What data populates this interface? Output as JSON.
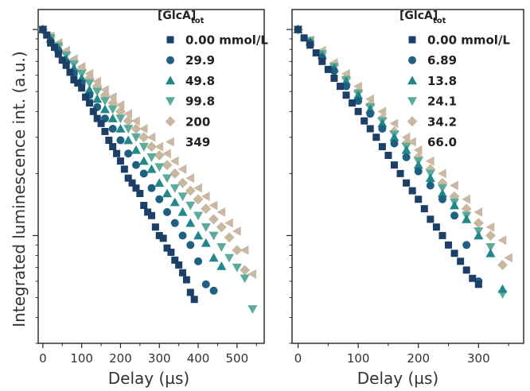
{
  "figure": {
    "ylabel": "Integrated luminescence int. (a.u.)"
  },
  "chart_data": [
    {
      "type": "scatter",
      "xlabel": "Delay (µs)",
      "ylabel": "Integrated luminescence int. (a.u.)",
      "y_scale": "log",
      "xlim": [
        -12,
        570
      ],
      "ylim": [
        0.03,
        1.25
      ],
      "x_ticks": [
        0,
        100,
        200,
        300,
        400,
        500
      ],
      "x_tick_labels": [
        "0",
        "100",
        "200",
        "300",
        "400",
        "500"
      ],
      "legend_title": "[GlcA]",
      "legend_title_sub": "tot",
      "legend_position": "top-right",
      "series": [
        {
          "name": "0.00 mmol/L",
          "marker": "square",
          "color": "#1b3f66",
          "x": [
            0,
            10,
            20,
            30,
            40,
            50,
            60,
            70,
            80,
            90,
            100,
            110,
            120,
            130,
            140,
            150,
            160,
            170,
            180,
            190,
            200,
            210,
            220,
            230,
            240,
            250,
            260,
            270,
            280,
            290,
            300,
            310,
            320,
            330,
            340,
            350,
            360,
            370,
            380,
            390
          ],
          "y": [
            1.0,
            0.94,
            0.86,
            0.82,
            0.76,
            0.71,
            0.67,
            0.62,
            0.57,
            0.55,
            0.52,
            0.47,
            0.44,
            0.4,
            0.37,
            0.35,
            0.32,
            0.29,
            0.27,
            0.25,
            0.23,
            0.21,
            0.19,
            0.18,
            0.17,
            0.16,
            0.14,
            0.13,
            0.125,
            0.11,
            0.1,
            0.097,
            0.087,
            0.083,
            0.076,
            0.072,
            0.066,
            0.061,
            0.053,
            0.049
          ]
        },
        {
          "name": "29.9",
          "marker": "circle",
          "color": "#1f5f82",
          "x": [
            0,
            20,
            40,
            60,
            80,
            100,
            120,
            140,
            160,
            180,
            200,
            220,
            240,
            260,
            280,
            300,
            320,
            340,
            360,
            380,
            400,
            420,
            440
          ],
          "y": [
            1.0,
            0.88,
            0.79,
            0.69,
            0.61,
            0.55,
            0.48,
            0.42,
            0.37,
            0.33,
            0.29,
            0.25,
            0.22,
            0.2,
            0.17,
            0.15,
            0.13,
            0.115,
            0.1,
            0.09,
            0.075,
            0.058,
            0.054
          ]
        },
        {
          "name": "49.8",
          "marker": "triangle-up",
          "color": "#21878a",
          "x": [
            0,
            20,
            40,
            60,
            80,
            100,
            120,
            140,
            160,
            180,
            200,
            220,
            240,
            260,
            280,
            300,
            320,
            340,
            360,
            380,
            400,
            420,
            440,
            460
          ],
          "y": [
            1.0,
            0.9,
            0.81,
            0.72,
            0.65,
            0.58,
            0.51,
            0.46,
            0.41,
            0.37,
            0.33,
            0.29,
            0.26,
            0.23,
            0.21,
            0.18,
            0.16,
            0.145,
            0.13,
            0.115,
            0.1,
            0.092,
            0.078,
            0.071
          ]
        },
        {
          "name": "99.8",
          "marker": "triangle-down",
          "color": "#5aab9c",
          "x": [
            0,
            20,
            40,
            60,
            80,
            100,
            120,
            140,
            160,
            180,
            200,
            220,
            240,
            260,
            280,
            300,
            320,
            340,
            360,
            380,
            400,
            420,
            440,
            460,
            480,
            500,
            520,
            540
          ],
          "y": [
            1.0,
            0.91,
            0.83,
            0.75,
            0.68,
            0.61,
            0.55,
            0.5,
            0.45,
            0.41,
            0.37,
            0.33,
            0.3,
            0.27,
            0.24,
            0.215,
            0.19,
            0.17,
            0.155,
            0.14,
            0.125,
            0.11,
            0.1,
            0.088,
            0.078,
            0.07,
            0.062,
            0.044
          ]
        },
        {
          "name": "200",
          "marker": "diamond",
          "color": "#c9b8a0",
          "x": [
            0,
            20,
            40,
            60,
            80,
            100,
            120,
            140,
            160,
            180,
            200,
            220,
            240,
            260,
            280,
            300,
            320,
            340,
            360,
            380,
            400,
            420,
            440,
            460,
            480,
            500,
            520
          ],
          "y": [
            1.0,
            0.92,
            0.84,
            0.77,
            0.7,
            0.64,
            0.58,
            0.53,
            0.48,
            0.44,
            0.4,
            0.36,
            0.33,
            0.3,
            0.27,
            0.245,
            0.22,
            0.2,
            0.18,
            0.165,
            0.15,
            0.135,
            0.12,
            0.11,
            0.098,
            0.085,
            0.068
          ]
        },
        {
          "name": "349",
          "marker": "triangle-left",
          "color": "#cbb8a4",
          "x": [
            0,
            20,
            40,
            60,
            80,
            100,
            120,
            140,
            160,
            180,
            200,
            220,
            240,
            260,
            280,
            300,
            320,
            340,
            360,
            380,
            400,
            420,
            440,
            460,
            480,
            500,
            520,
            540
          ],
          "y": [
            1.0,
            0.93,
            0.86,
            0.79,
            0.72,
            0.66,
            0.61,
            0.56,
            0.51,
            0.47,
            0.43,
            0.39,
            0.36,
            0.33,
            0.3,
            0.27,
            0.25,
            0.23,
            0.21,
            0.19,
            0.17,
            0.155,
            0.14,
            0.13,
            0.115,
            0.105,
            0.085,
            0.065
          ]
        }
      ]
    },
    {
      "type": "scatter",
      "xlabel": "Delay (µs)",
      "ylabel": "",
      "y_scale": "log",
      "xlim": [
        -10,
        375
      ],
      "ylim": [
        0.03,
        1.25
      ],
      "x_ticks": [
        0,
        100,
        200,
        300
      ],
      "x_tick_labels": [
        "0",
        "100",
        "200",
        "300"
      ],
      "legend_title": "[GlcA]",
      "legend_title_sub": "tot",
      "legend_position": "top-right",
      "series": [
        {
          "name": "0.00 mmol/L",
          "marker": "square",
          "color": "#1b3f66",
          "x": [
            0,
            10,
            20,
            30,
            40,
            50,
            60,
            70,
            80,
            90,
            100,
            110,
            120,
            130,
            140,
            150,
            160,
            170,
            180,
            190,
            200,
            210,
            220,
            230,
            240,
            250,
            260,
            270,
            280,
            290,
            300
          ],
          "y": [
            1.0,
            0.91,
            0.84,
            0.77,
            0.7,
            0.64,
            0.58,
            0.53,
            0.48,
            0.44,
            0.4,
            0.36,
            0.33,
            0.3,
            0.27,
            0.245,
            0.22,
            0.2,
            0.18,
            0.165,
            0.15,
            0.135,
            0.12,
            0.11,
            0.1,
            0.09,
            0.082,
            0.075,
            0.068,
            0.062,
            0.058
          ]
        },
        {
          "name": "6.89",
          "marker": "circle",
          "color": "#1f5f82",
          "x": [
            0,
            20,
            40,
            60,
            80,
            100,
            120,
            140,
            160,
            180,
            200,
            220,
            240,
            260,
            280,
            300
          ],
          "y": [
            1.0,
            0.86,
            0.73,
            0.63,
            0.53,
            0.45,
            0.39,
            0.33,
            0.28,
            0.24,
            0.205,
            0.175,
            0.15,
            0.125,
            0.09,
            0.06
          ]
        },
        {
          "name": "13.8",
          "marker": "triangle-up",
          "color": "#21878a",
          "x": [
            0,
            20,
            40,
            60,
            80,
            100,
            120,
            140,
            160,
            180,
            200,
            220,
            240,
            260,
            280,
            300,
            320,
            340
          ],
          "y": [
            1.0,
            0.87,
            0.75,
            0.65,
            0.56,
            0.48,
            0.41,
            0.35,
            0.3,
            0.26,
            0.22,
            0.19,
            0.16,
            0.14,
            0.12,
            0.1,
            0.082,
            0.055
          ]
        },
        {
          "name": "24.1",
          "marker": "triangle-down",
          "color": "#5aab9c",
          "x": [
            0,
            20,
            40,
            60,
            80,
            100,
            120,
            140,
            160,
            180,
            200,
            220,
            240,
            260,
            280,
            300,
            320,
            340
          ],
          "y": [
            1.0,
            0.88,
            0.76,
            0.66,
            0.57,
            0.49,
            0.42,
            0.36,
            0.31,
            0.27,
            0.23,
            0.2,
            0.17,
            0.145,
            0.125,
            0.105,
            0.088,
            0.052
          ]
        },
        {
          "name": "34.2",
          "marker": "diamond",
          "color": "#c9b8a0",
          "x": [
            0,
            20,
            40,
            60,
            80,
            100,
            120,
            140,
            160,
            180,
            200,
            220,
            240,
            260,
            280,
            300,
            320,
            340
          ],
          "y": [
            1.0,
            0.88,
            0.77,
            0.67,
            0.58,
            0.5,
            0.43,
            0.37,
            0.32,
            0.28,
            0.24,
            0.21,
            0.18,
            0.155,
            0.135,
            0.115,
            0.1,
            0.072
          ]
        },
        {
          "name": "66.0",
          "marker": "triangle-left",
          "color": "#cbb8a4",
          "x": [
            0,
            20,
            40,
            60,
            80,
            100,
            120,
            140,
            160,
            180,
            200,
            220,
            240,
            260,
            280,
            300,
            320,
            340,
            350
          ],
          "y": [
            1.0,
            0.89,
            0.79,
            0.69,
            0.61,
            0.53,
            0.46,
            0.4,
            0.35,
            0.3,
            0.26,
            0.23,
            0.2,
            0.175,
            0.15,
            0.13,
            0.11,
            0.095,
            0.078
          ]
        }
      ]
    }
  ]
}
